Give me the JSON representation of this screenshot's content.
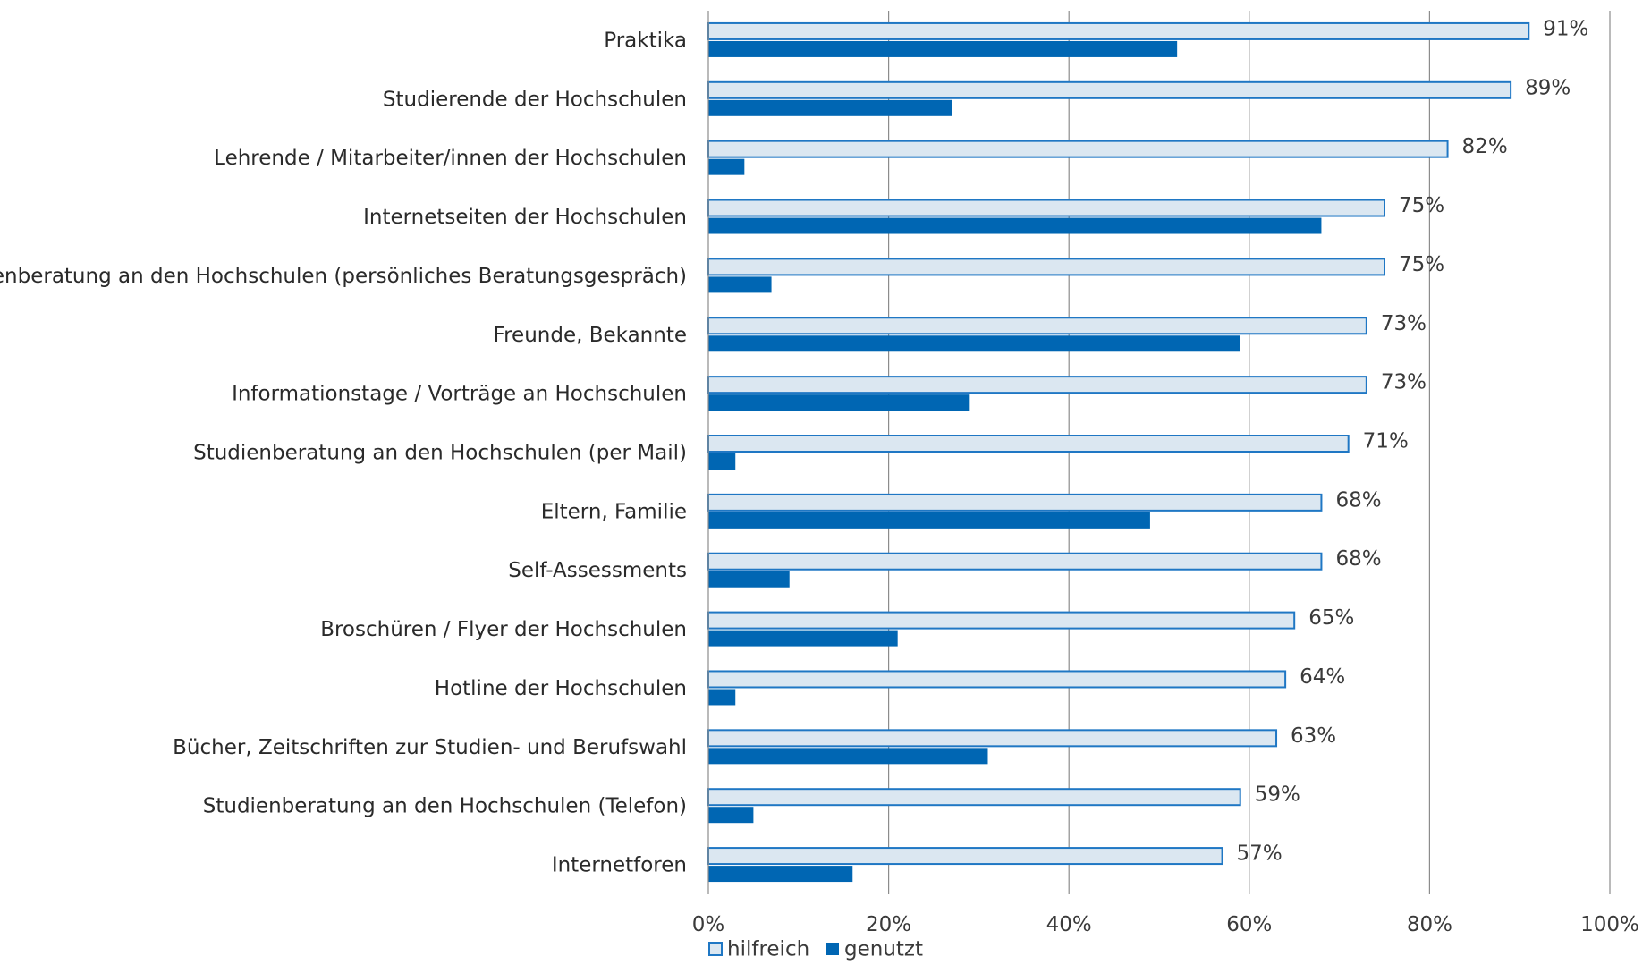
{
  "chart_data": {
    "type": "bar",
    "orientation": "horizontal",
    "title": "",
    "xlabel": "",
    "ylabel": "",
    "xlim": [
      0,
      100
    ],
    "x_ticks": [
      "0%",
      "20%",
      "40%",
      "60%",
      "80%",
      "100%"
    ],
    "grid": true,
    "legend_position": "bottom",
    "categories": [
      "Praktika",
      "Studierende der Hochschulen",
      "Lehrende / Mitarbeiter/innen der Hochschulen",
      "Internetseiten der Hochschulen",
      "Studienberatung an den Hochschulen (persönliches Beratungsgespräch)",
      "Freunde, Bekannte",
      "Informationstage / Vorträge an Hochschulen",
      "Studienberatung an den Hochschulen (per Mail)",
      "Eltern, Familie",
      "Self-Assessments",
      "Broschüren / Flyer der Hochschulen",
      "Hotline der Hochschulen",
      "Bücher, Zeitschriften zur Studien- und Berufswahl",
      "Studienberatung an den Hochschulen (Telefon)",
      "Internetforen"
    ],
    "series": [
      {
        "name": "hilfreich",
        "color": "#dbe7f1",
        "stroke": "#1f77c4",
        "values": [
          91,
          89,
          82,
          75,
          75,
          73,
          73,
          71,
          68,
          68,
          65,
          64,
          63,
          59,
          57
        ],
        "data_labels": [
          "91%",
          "89%",
          "82%",
          "75%",
          "75%",
          "73%",
          "73%",
          "71%",
          "68%",
          "68%",
          "65%",
          "64%",
          "63%",
          "59%",
          "57%"
        ]
      },
      {
        "name": "genutzt",
        "color": "#0066b3",
        "values": [
          52,
          27,
          4,
          68,
          7,
          59,
          29,
          3,
          49,
          9,
          21,
          3,
          31,
          5,
          16
        ]
      }
    ]
  }
}
